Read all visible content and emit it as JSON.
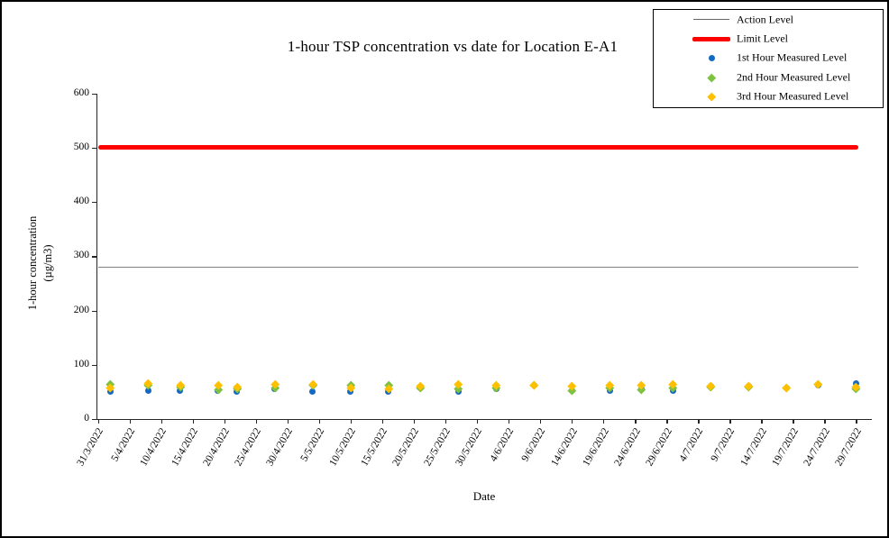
{
  "legend": {
    "items": [
      {
        "label": "Action Level",
        "type": "thin-line",
        "color": "#666666"
      },
      {
        "label": "Limit Level",
        "type": "thick-line",
        "color": "#ff0000"
      },
      {
        "label": "1st Hour Measured Level",
        "type": "circle",
        "color": "#1569c0"
      },
      {
        "label": "2nd Hour Measured Level",
        "type": "diamond",
        "color": "#7fc241"
      },
      {
        "label": "3rd Hour Measured Level",
        "type": "diamond",
        "color": "#ffc000"
      }
    ]
  },
  "chart_data": {
    "type": "scatter",
    "title": "1-hour TSP concentration vs date for Location E-A1",
    "xlabel": "Date",
    "ylabel": "1-hour concentration (µg/m3)",
    "ylabel_lines": [
      "1-hour concentration",
      "(µg/m3)"
    ],
    "ylim": [
      0,
      600
    ],
    "y_ticks": [
      0,
      100,
      200,
      300,
      400,
      500,
      600
    ],
    "x_tick_labels": [
      "31/3/2022",
      "5/4/2022",
      "10/4/2022",
      "15/4/2022",
      "20/4/2022",
      "25/4/2022",
      "30/4/2022",
      "5/5/2022",
      "10/5/2022",
      "15/5/2022",
      "20/5/2022",
      "25/5/2022",
      "30/5/2022",
      "4/6/2022",
      "9/6/2022",
      "14/6/2022",
      "19/6/2022",
      "24/6/2022",
      "29/6/2022",
      "4/7/2022",
      "9/7/2022",
      "14/7/2022",
      "19/7/2022",
      "24/7/2022",
      "29/7/2022"
    ],
    "grid": false,
    "legend_position": "top-right",
    "reference_lines": [
      {
        "name": "Action Level",
        "value": 280,
        "color": "#7f7f7f",
        "thickness": 1.3
      },
      {
        "name": "Limit Level",
        "value": 500,
        "color": "#ff0000",
        "thickness": 5
      }
    ],
    "x_dates": [
      "2/4/2022",
      "8/4/2022",
      "13/4/2022",
      "19/4/2022",
      "22/4/2022",
      "28/4/2022",
      "4/5/2022",
      "10/5/2022",
      "16/5/2022",
      "21/5/2022",
      "27/5/2022",
      "2/6/2022",
      "8/6/2022",
      "14/6/2022",
      "20/6/2022",
      "25/6/2022",
      "30/6/2022",
      "6/7/2022",
      "12/7/2022",
      "18/7/2022",
      "23/7/2022",
      "29/7/2022"
    ],
    "series": [
      {
        "name": "1st Hour Measured Level",
        "marker": "circle",
        "color": "#1569c0",
        "values": [
          51,
          52,
          52,
          53,
          51,
          55,
          50,
          51,
          51,
          57,
          51,
          55,
          62,
          53,
          53,
          55,
          53,
          60,
          60,
          58,
          63,
          66
        ]
      },
      {
        "name": "2nd Hour Measured Level",
        "marker": "diamond",
        "color": "#7fc241",
        "values": [
          64,
          62,
          60,
          54,
          56,
          57,
          62,
          62,
          63,
          57,
          56,
          58,
          62,
          53,
          58,
          55,
          58,
          60,
          60,
          58,
          64,
          56
        ]
      },
      {
        "name": "3rd Hour Measured Level",
        "marker": "diamond",
        "color": "#ffc000",
        "values": [
          58,
          66,
          63,
          62,
          60,
          65,
          65,
          57,
          56,
          61,
          64,
          63,
          63,
          61,
          63,
          63,
          65,
          61,
          61,
          58,
          64,
          59
        ]
      }
    ]
  }
}
